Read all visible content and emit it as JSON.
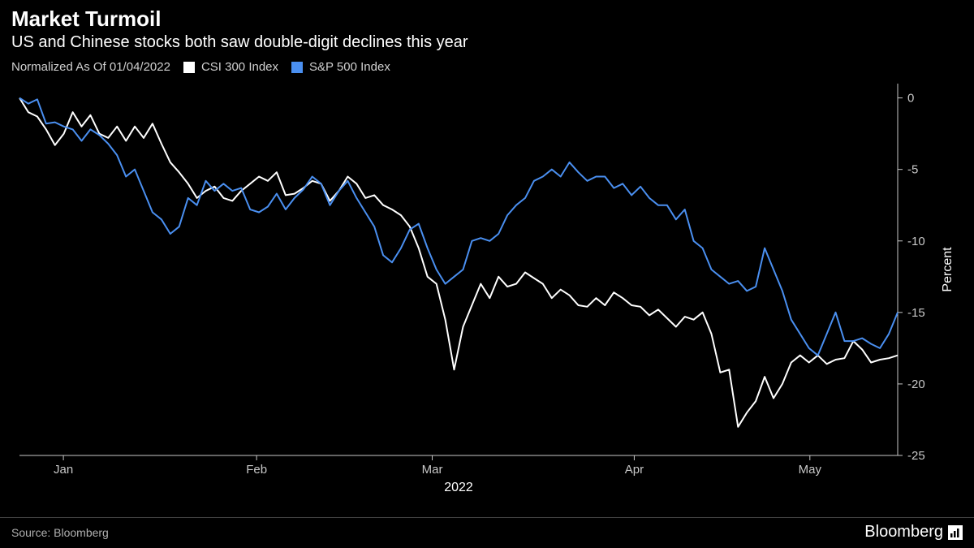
{
  "title": "Market Turmoil",
  "subtitle": "US and Chinese stocks both saw double-digit declines this year",
  "legend": {
    "normalized_label": "Normalized As Of 01/04/2022",
    "series1_label": "CSI 300 Index",
    "series2_label": "S&P 500 Index"
  },
  "source_label": "Source: Bloomberg",
  "brand": "Bloomberg",
  "chart": {
    "type": "line",
    "background_color": "#000000",
    "axis_color": "#c8c8c8",
    "text_color": "#c8c8c8",
    "line_width": 2,
    "y_axis": {
      "label": "Percent",
      "side": "right",
      "min": -25,
      "max": 1,
      "ticks": [
        0,
        -5,
        -10,
        -15,
        -20,
        -25
      ]
    },
    "x_axis": {
      "label": "2022",
      "ticks": [
        "Jan",
        "Feb",
        "Mar",
        "Apr",
        "May"
      ],
      "tick_positions": [
        5,
        27,
        47,
        70,
        90
      ]
    },
    "series": [
      {
        "name": "CSI 300 Index",
        "color": "#ffffff",
        "values": [
          0,
          -1.0,
          -1.3,
          -2.2,
          -3.3,
          -2.5,
          -1.0,
          -2.0,
          -1.2,
          -2.5,
          -2.8,
          -2.0,
          -3.0,
          -2.0,
          -2.8,
          -1.8,
          -3.2,
          -4.5,
          -5.2,
          -6.0,
          -7.0,
          -6.5,
          -6.2,
          -7.0,
          -7.2,
          -6.5,
          -6.0,
          -5.5,
          -5.8,
          -5.2,
          -6.8,
          -6.7,
          -6.3,
          -5.8,
          -6.0,
          -7.2,
          -6.5,
          -5.5,
          -6.0,
          -7.0,
          -6.8,
          -7.5,
          -7.8,
          -8.2,
          -9.0,
          -10.5,
          -12.5,
          -13.0,
          -15.5,
          -19.0,
          -16.0,
          -14.5,
          -13.0,
          -14.0,
          -12.5,
          -13.2,
          -13.0,
          -12.2,
          -12.6,
          -13.0,
          -14.0,
          -13.4,
          -13.8,
          -14.5,
          -14.6,
          -14.0,
          -14.5,
          -13.6,
          -14.0,
          -14.5,
          -14.6,
          -15.2,
          -14.8,
          -15.4,
          -16.0,
          -15.3,
          -15.5,
          -15.0,
          -16.5,
          -19.2,
          -19.0,
          -23.0,
          -22.0,
          -21.2,
          -19.5,
          -21.0,
          -20.0,
          -18.5,
          -18.0,
          -18.5,
          -18.0,
          -18.6,
          -18.3,
          -18.2,
          -17.0,
          -17.6,
          -18.5,
          -18.3,
          -18.2,
          -18.0
        ]
      },
      {
        "name": "S&P 500 Index",
        "color": "#4a8ff0",
        "values": [
          0,
          -0.4,
          -0.1,
          -1.8,
          -1.7,
          -2.0,
          -2.2,
          -3.0,
          -2.2,
          -2.6,
          -3.2,
          -4.0,
          -5.5,
          -5.0,
          -6.5,
          -8.0,
          -8.5,
          -9.5,
          -9.0,
          -7.0,
          -7.5,
          -5.8,
          -6.5,
          -6.0,
          -6.5,
          -6.3,
          -7.8,
          -8.0,
          -7.6,
          -6.7,
          -7.8,
          -7.0,
          -6.4,
          -5.5,
          -6.0,
          -7.5,
          -6.5,
          -5.8,
          -7.0,
          -8.0,
          -9.0,
          -11.0,
          -11.5,
          -10.5,
          -9.2,
          -8.8,
          -10.5,
          -12.0,
          -13.0,
          -12.5,
          -12.0,
          -10.0,
          -9.8,
          -10.0,
          -9.5,
          -8.2,
          -7.5,
          -7.0,
          -5.8,
          -5.5,
          -5.0,
          -5.5,
          -4.5,
          -5.2,
          -5.8,
          -5.5,
          -5.5,
          -6.3,
          -6.0,
          -6.8,
          -6.2,
          -7.0,
          -7.5,
          -7.5,
          -8.5,
          -7.8,
          -10.0,
          -10.5,
          -12.0,
          -12.5,
          -13.0,
          -12.8,
          -13.5,
          -13.2,
          -10.5,
          -12.0,
          -13.5,
          -15.5,
          -16.5,
          -17.5,
          -18.0,
          -16.5,
          -15.0,
          -17.0,
          -17.0,
          -16.8,
          -17.2,
          -17.5,
          -16.5,
          -15.0
        ]
      }
    ]
  }
}
